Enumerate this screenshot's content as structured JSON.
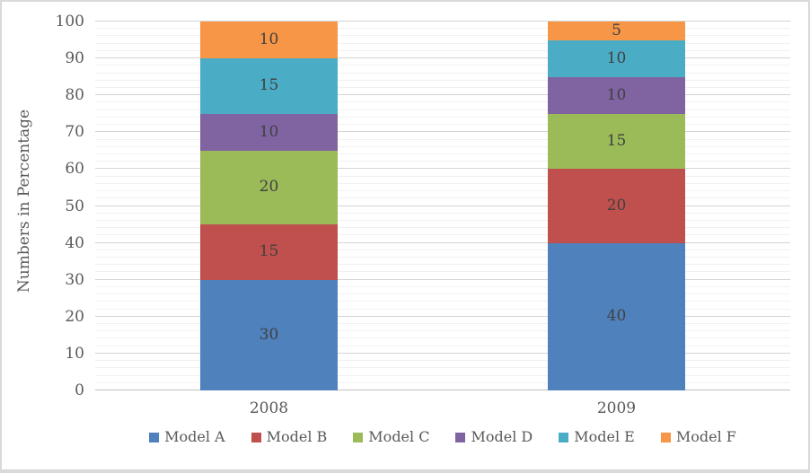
{
  "chart_data": {
    "type": "bar",
    "subtype": "stacked-percentage",
    "title": "",
    "ylabel": "Numbers in Percentage",
    "xlabel": "",
    "categories": [
      "2008",
      "2009"
    ],
    "series": [
      {
        "name": "Model A",
        "color": "#4F81BD",
        "values": [
          30,
          40
        ]
      },
      {
        "name": "Model B",
        "color": "#C0504D",
        "values": [
          15,
          20
        ]
      },
      {
        "name": "Model C",
        "color": "#9BBB59",
        "values": [
          20,
          15
        ]
      },
      {
        "name": "Model D",
        "color": "#8064A2",
        "values": [
          10,
          10
        ]
      },
      {
        "name": "Model E",
        "color": "#4BACC6",
        "values": [
          15,
          10
        ]
      },
      {
        "name": "Model F",
        "color": "#F79646",
        "values": [
          10,
          5
        ]
      }
    ],
    "ylim": [
      0,
      100
    ],
    "y_major_step": 10,
    "y_minor_step": 2,
    "y_tick_labels": [
      "0",
      "10",
      "20",
      "30",
      "40",
      "50",
      "60",
      "70",
      "80",
      "90",
      "100"
    ],
    "grid": "major+minor horizontal",
    "legend_position": "bottom",
    "data_labels": true
  },
  "colors": {
    "axis_text": "#595959",
    "data_label": "#404040",
    "major_grid": "#d4d4d4",
    "minor_grid": "#f1f1f1",
    "axis_line": "#c2c2c2",
    "border": "#d9d9d9",
    "background": "#ffffff"
  }
}
